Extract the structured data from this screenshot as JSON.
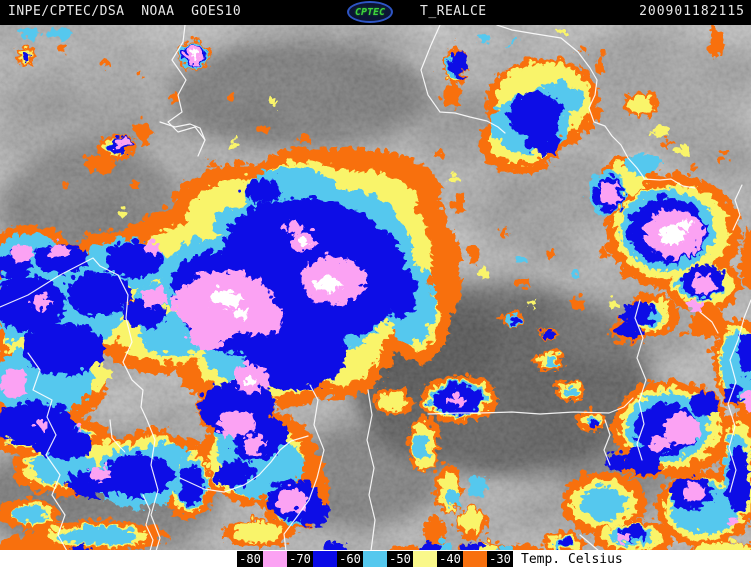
{
  "header": {
    "station_text": "INPE/CPTEC/DSA  NOAA  GOES10",
    "logo_text": "CPTEC",
    "product_label": "T_REALCE",
    "timestamp": "200901182115"
  },
  "legend": {
    "title": "Temp. Celsius",
    "labels": [
      "-80",
      "-70",
      "-60",
      "-50",
      "-40",
      "-30"
    ],
    "swatches": [
      "#FBA2F3",
      "#0A0AE6",
      "#55C8EE",
      "#FAF88A",
      "#F8700E"
    ]
  },
  "palette": {
    "pink": "#FBA2F3",
    "blue": "#0A0AE6",
    "cyan": "#55C8EE",
    "yellow": "#F9F46B",
    "orange": "#F8700E",
    "cloud_core_white": "#FFFFFF",
    "border_line": "#FFFFFF",
    "bar_background": "#000000",
    "legend_background": "#FFFFFF"
  }
}
